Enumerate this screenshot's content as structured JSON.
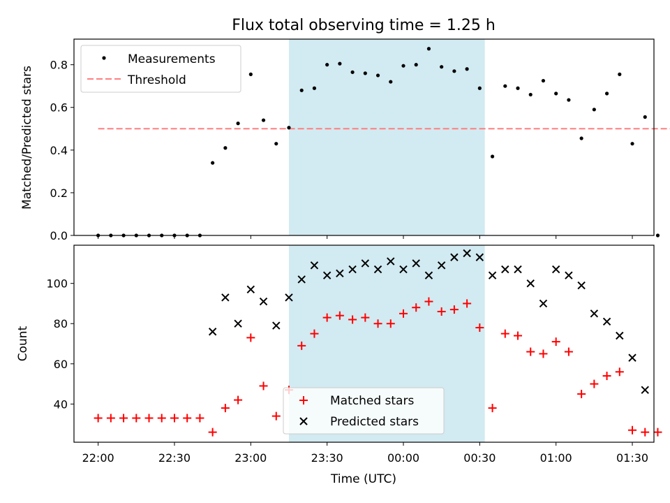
{
  "chart_data": [
    {
      "type": "scatter",
      "title": "Flux total observing time = 1.25 h",
      "ylabel": "Matched/Predicted stars",
      "xlabel": "",
      "ylim": [
        0,
        0.92
      ],
      "yticks": [
        0.0,
        0.2,
        0.4,
        0.6,
        0.8
      ],
      "ytick_labels": [
        "0.0",
        "0.2",
        "0.4",
        "0.6",
        "0.8"
      ],
      "highlight": {
        "from": "23:15",
        "to": "00:32",
        "color": "#add8e6"
      },
      "legend_position": "upper left",
      "threshold": {
        "name": "Threshold",
        "y": 0.5,
        "from": "22:00",
        "to": "01:45",
        "color": "#ff7f7f"
      },
      "series": [
        {
          "name": "Measurements",
          "color": "#000000",
          "points": [
            [
              "22:00",
              0.0
            ],
            [
              "22:05",
              0.0
            ],
            [
              "22:10",
              0.0
            ],
            [
              "22:15",
              0.0
            ],
            [
              "22:20",
              0.0
            ],
            [
              "22:25",
              0.0
            ],
            [
              "22:30",
              0.0
            ],
            [
              "22:35",
              0.0
            ],
            [
              "22:40",
              0.0
            ],
            [
              "22:45",
              0.34
            ],
            [
              "22:50",
              0.41
            ],
            [
              "22:55",
              0.525
            ],
            [
              "23:00",
              0.755
            ],
            [
              "23:05",
              0.54
            ],
            [
              "23:10",
              0.43
            ],
            [
              "23:15",
              0.505
            ],
            [
              "23:20",
              0.68
            ],
            [
              "23:25",
              0.69
            ],
            [
              "23:30",
              0.8
            ],
            [
              "23:35",
              0.805
            ],
            [
              "23:40",
              0.765
            ],
            [
              "23:45",
              0.76
            ],
            [
              "23:50",
              0.75
            ],
            [
              "23:55",
              0.72
            ],
            [
              "00:00",
              0.795
            ],
            [
              "00:05",
              0.8
            ],
            [
              "00:10",
              0.875
            ],
            [
              "00:15",
              0.79
            ],
            [
              "00:20",
              0.77
            ],
            [
              "00:25",
              0.78
            ],
            [
              "00:30",
              0.69
            ],
            [
              "00:35",
              0.37
            ],
            [
              "00:40",
              0.7
            ],
            [
              "00:45",
              0.69
            ],
            [
              "00:50",
              0.66
            ],
            [
              "00:55",
              0.725
            ],
            [
              "01:00",
              0.665
            ],
            [
              "01:05",
              0.635
            ],
            [
              "01:10",
              0.455
            ],
            [
              "01:15",
              0.59
            ],
            [
              "01:20",
              0.665
            ],
            [
              "01:25",
              0.755
            ],
            [
              "01:30",
              0.43
            ],
            [
              "01:35",
              0.555
            ],
            [
              "01:40",
              0.0
            ]
          ]
        }
      ]
    },
    {
      "type": "scatter",
      "title": "",
      "ylabel": "Count",
      "xlabel": "Time (UTC)",
      "ylim": [
        21,
        119
      ],
      "yticks": [
        40,
        60,
        80,
        100
      ],
      "ytick_labels": [
        "40",
        "60",
        "80",
        "100"
      ],
      "xticks": [
        "22:00",
        "22:30",
        "23:00",
        "23:30",
        "00:00",
        "00:30",
        "01:00",
        "01:30"
      ],
      "highlight": {
        "from": "23:15",
        "to": "00:32",
        "color": "#add8e6"
      },
      "legend_position": "lower center",
      "series": [
        {
          "name": "Matched stars",
          "marker": "+",
          "color": "#ff0000",
          "points": [
            [
              "22:00",
              33
            ],
            [
              "22:05",
              33
            ],
            [
              "22:10",
              33
            ],
            [
              "22:15",
              33
            ],
            [
              "22:20",
              33
            ],
            [
              "22:25",
              33
            ],
            [
              "22:30",
              33
            ],
            [
              "22:35",
              33
            ],
            [
              "22:40",
              33
            ],
            [
              "22:45",
              26
            ],
            [
              "22:50",
              38
            ],
            [
              "22:55",
              42
            ],
            [
              "23:00",
              73
            ],
            [
              "23:05",
              49
            ],
            [
              "23:10",
              34
            ],
            [
              "23:15",
              47
            ],
            [
              "23:20",
              69
            ],
            [
              "23:25",
              75
            ],
            [
              "23:30",
              83
            ],
            [
              "23:35",
              84
            ],
            [
              "23:40",
              82
            ],
            [
              "23:45",
              83
            ],
            [
              "23:50",
              80
            ],
            [
              "23:55",
              80
            ],
            [
              "00:00",
              85
            ],
            [
              "00:05",
              88
            ],
            [
              "00:10",
              91
            ],
            [
              "00:15",
              86
            ],
            [
              "00:20",
              87
            ],
            [
              "00:25",
              90
            ],
            [
              "00:30",
              78
            ],
            [
              "00:35",
              38
            ],
            [
              "00:40",
              75
            ],
            [
              "00:45",
              74
            ],
            [
              "00:50",
              66
            ],
            [
              "00:55",
              65
            ],
            [
              "01:00",
              71
            ],
            [
              "01:05",
              66
            ],
            [
              "01:10",
              45
            ],
            [
              "01:15",
              50
            ],
            [
              "01:20",
              54
            ],
            [
              "01:25",
              56
            ],
            [
              "01:30",
              27
            ],
            [
              "01:35",
              26
            ],
            [
              "01:40",
              26
            ]
          ]
        },
        {
          "name": "Predicted stars",
          "marker": "x",
          "color": "#000000",
          "points": [
            [
              "22:45",
              76
            ],
            [
              "22:50",
              93
            ],
            [
              "22:55",
              80
            ],
            [
              "23:00",
              97
            ],
            [
              "23:05",
              91
            ],
            [
              "23:10",
              79
            ],
            [
              "23:15",
              93
            ],
            [
              "23:20",
              102
            ],
            [
              "23:25",
              109
            ],
            [
              "23:30",
              104
            ],
            [
              "23:35",
              105
            ],
            [
              "23:40",
              107
            ],
            [
              "23:45",
              110
            ],
            [
              "23:50",
              107
            ],
            [
              "23:55",
              111
            ],
            [
              "00:00",
              107
            ],
            [
              "00:05",
              110
            ],
            [
              "00:10",
              104
            ],
            [
              "00:15",
              109
            ],
            [
              "00:20",
              113
            ],
            [
              "00:25",
              115
            ],
            [
              "00:30",
              113
            ],
            [
              "00:35",
              104
            ],
            [
              "00:40",
              107
            ],
            [
              "00:45",
              107
            ],
            [
              "00:50",
              100
            ],
            [
              "00:55",
              90
            ],
            [
              "01:00",
              107
            ],
            [
              "01:05",
              104
            ],
            [
              "01:10",
              99
            ],
            [
              "01:15",
              85
            ],
            [
              "01:20",
              81
            ],
            [
              "01:25",
              74
            ],
            [
              "01:30",
              63
            ],
            [
              "01:35",
              47
            ]
          ]
        }
      ]
    }
  ]
}
